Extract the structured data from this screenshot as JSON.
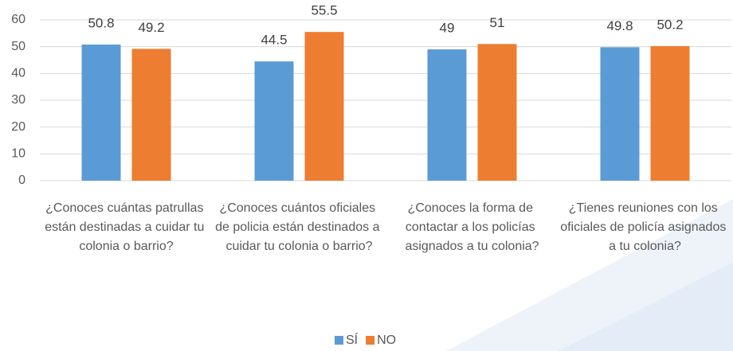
{
  "chart_data": {
    "type": "bar",
    "categories": [
      "¿Conoces cuántas patrullas están destinadas a cuidar tu colonia o barrio?",
      "¿Conoces cuántos oficiales de policia están destinados a cuidar tu colonia o barrio?",
      "¿Conoces la forma de contactar a los policías asignados a tu colonia?",
      "¿Tienes reuniones con los oficiales de policía asignados a tu colonia?"
    ],
    "series": [
      {
        "name": "SÍ",
        "color": "#5b9bd5",
        "values": [
          50.8,
          44.5,
          49,
          49.8
        ]
      },
      {
        "name": "NO",
        "color": "#ed7d31",
        "values": [
          49.2,
          55.5,
          51,
          50.2
        ]
      }
    ],
    "ylim": [
      0,
      60
    ],
    "yticks": [
      0,
      10,
      20,
      30,
      40,
      50,
      60
    ],
    "grid": true,
    "legend": "bottom"
  }
}
